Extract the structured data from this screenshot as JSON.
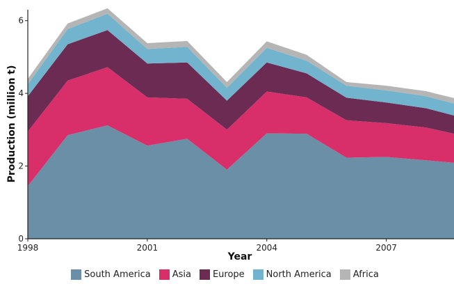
{
  "chart_data": {
    "type": "area",
    "stacked": true,
    "xlabel": "Year",
    "ylabel": "Production (million t)",
    "xlim": [
      1998,
      2008.7
    ],
    "ylim": [
      0,
      6.3
    ],
    "x_ticks": [
      1998,
      2001,
      2004,
      2007
    ],
    "y_ticks": [
      0,
      2,
      4,
      6
    ],
    "x_tick_labels": [
      "1998",
      "2001",
      "2004",
      "2007"
    ],
    "y_tick_labels": [
      "0",
      "2",
      "4",
      "6"
    ],
    "legend_position": "bottom",
    "x": [
      1998,
      1999,
      2000,
      2001,
      2002,
      2003,
      2004,
      2005,
      2006,
      2007,
      2008,
      2008.7
    ],
    "series": [
      {
        "name": "South America",
        "color": "#6a8fa6",
        "values": [
          1.45,
          2.85,
          3.12,
          2.56,
          2.75,
          1.9,
          2.9,
          2.89,
          2.23,
          2.25,
          2.16,
          2.09
        ]
      },
      {
        "name": "Asia",
        "color": "#d82f6a",
        "values": [
          1.5,
          1.5,
          1.6,
          1.33,
          1.1,
          1.1,
          1.15,
          1.0,
          1.03,
          0.93,
          0.9,
          0.8
        ]
      },
      {
        "name": "Europe",
        "color": "#6b2b52",
        "values": [
          0.97,
          1.0,
          1.02,
          0.93,
          1.0,
          0.8,
          0.8,
          0.66,
          0.62,
          0.57,
          0.53,
          0.5
        ]
      },
      {
        "name": "North America",
        "color": "#72b3cd",
        "values": [
          0.33,
          0.42,
          0.45,
          0.4,
          0.43,
          0.35,
          0.4,
          0.35,
          0.33,
          0.33,
          0.33,
          0.33
        ]
      },
      {
        "name": "Africa",
        "color": "#b5b5b5",
        "values": [
          0.15,
          0.15,
          0.15,
          0.16,
          0.16,
          0.16,
          0.18,
          0.16,
          0.1,
          0.13,
          0.14,
          0.15
        ]
      }
    ]
  }
}
